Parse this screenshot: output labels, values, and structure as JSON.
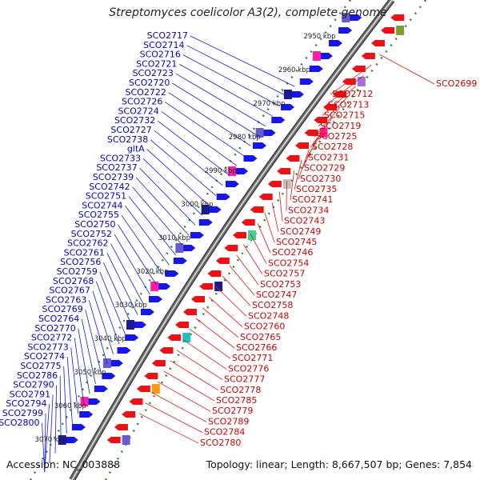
{
  "title": "Streptomyces coelicolor A3(2), complete genome",
  "accession": "Accession: NC_003888",
  "summary": "Topology: linear; Length: 8,667,507 bp; Genes: 7,854",
  "kbp_ticks": [
    "2950 kbp",
    "2960 kbp",
    "2970 kbp",
    "2980 kbp",
    "2990 kbp",
    "3000 kbp",
    "3010 kbp",
    "3020 kbp",
    "3030 kbp",
    "3040 kbp",
    "3050 kbp",
    "3060 kbp",
    "3070 kbp"
  ],
  "left_genes": [
    "SCO2717",
    "SCO2714",
    "SCO2716",
    "SCO2721",
    "SCO2723",
    "SCO2720",
    "SCO2722",
    "SCO2726",
    "SCO2724",
    "SCO2732",
    "SCO2727",
    "SCO2738",
    "gltA",
    "SCO2733",
    "SCO2737",
    "SCO2739",
    "SCO2742",
    "SCO2751",
    "SCO2744",
    "SCO2755",
    "SCO2750",
    "SCO2752",
    "SCO2762",
    "SCO2761",
    "SCO2756",
    "SCO2759",
    "SCO2768",
    "SCO2767",
    "SCO2763",
    "SCO2769",
    "SCO2764",
    "SCO2770",
    "SCO2772",
    "SCO2773",
    "SCO2774",
    "SCO2775",
    "SCO2786",
    "SCO2790",
    "SCO2791",
    "SCO2794",
    "SCO2799",
    "SCO2800"
  ],
  "right_genes": [
    "SCO2699",
    "SCO2712",
    "SCO2713",
    "SCO2715",
    "SCO2719",
    "SCO2725",
    "SCO2728",
    "SCO2731",
    "SCO2729",
    "SCO2730",
    "SCO2735",
    "SCO2741",
    "SCO2734",
    "SCO2743",
    "SCO2749",
    "SCO2745",
    "SCO2746",
    "SCO2754",
    "SCO2757",
    "SCO2753",
    "SCO2747",
    "SCO2758",
    "SCO2748",
    "SCO2760",
    "SCO2765",
    "SCO2766",
    "SCO2771",
    "SCO2776",
    "SCO2777",
    "SCO2778",
    "SCO2785",
    "SCO2779",
    "SCO2789",
    "SCO2784",
    "SCO2780"
  ],
  "colors": {
    "forward": "#1515ee",
    "reverse": "#ee1111",
    "backbone": "#777777",
    "tick": "#2a8a2a"
  }
}
